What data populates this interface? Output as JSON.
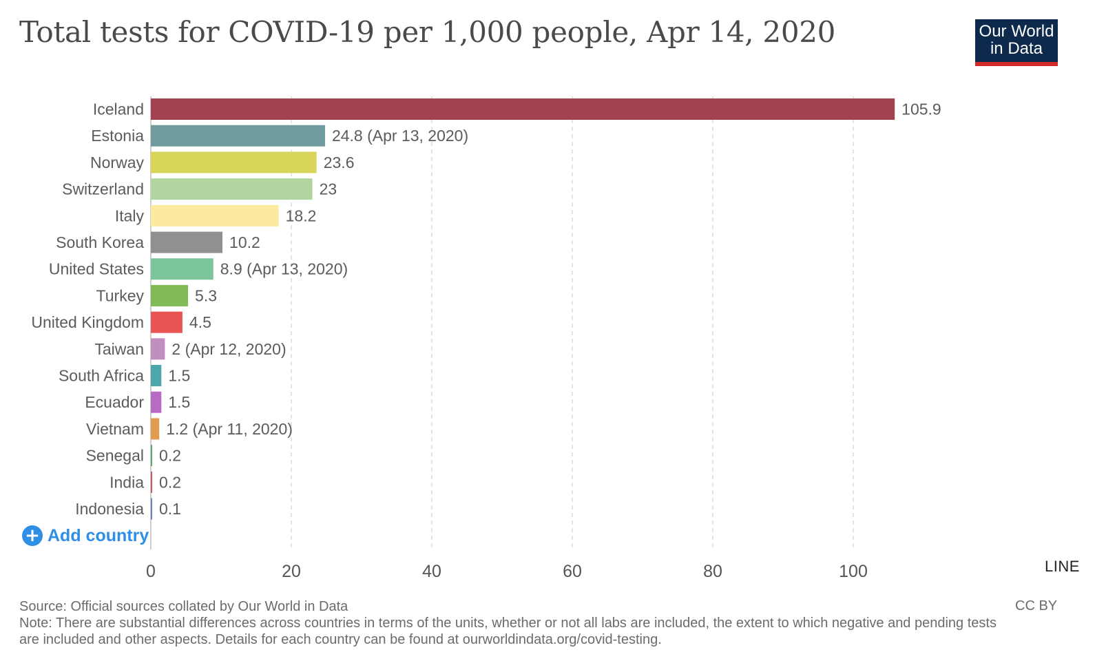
{
  "header": {
    "title": "Total tests for COVID-19 per 1,000 people, Apr 14, 2020",
    "logo_line1": "Our World",
    "logo_line2": "in Data"
  },
  "controls": {
    "add_country_label": "Add country",
    "line_tab_label": "LINE"
  },
  "footer": {
    "source": "Source: Official sources collated by Our World in Data",
    "note": "Note: There are substantial differences across countries in terms of the units, whether or not all labs are included, the extent to which negative and pending tests are included and other aspects. Details for each country can be found at ourworldindata.org/covid-testing.",
    "license": "CC BY"
  },
  "chart_data": {
    "type": "bar",
    "orientation": "horizontal",
    "title": "Total tests for COVID-19 per 1,000 people, Apr 14, 2020",
    "xlim": [
      0,
      120
    ],
    "xticks": [
      0,
      20,
      40,
      60,
      80,
      100
    ],
    "grid": true,
    "categories": [
      "Iceland",
      "Estonia",
      "Norway",
      "Switzerland",
      "Italy",
      "South Korea",
      "United States",
      "Turkey",
      "United Kingdom",
      "Taiwan",
      "South Africa",
      "Ecuador",
      "Vietnam",
      "Senegal",
      "India",
      "Indonesia"
    ],
    "values": [
      105.9,
      24.8,
      23.6,
      23,
      18.2,
      10.2,
      8.9,
      5.3,
      4.5,
      2,
      1.5,
      1.5,
      1.2,
      0.2,
      0.2,
      0.1
    ],
    "value_labels": [
      "105.9",
      "24.8 (Apr 13, 2020)",
      "23.6",
      "23",
      "18.2",
      "10.2",
      "8.9 (Apr 13, 2020)",
      "5.3",
      "4.5",
      "2 (Apr 12, 2020)",
      "1.5",
      "1.5",
      "1.2 (Apr 11, 2020)",
      "0.2",
      "0.2",
      "0.1"
    ],
    "colors": [
      "#a2414f",
      "#6f9b9f",
      "#d8d65a",
      "#b1d59f",
      "#fcea9f",
      "#909090",
      "#7cc49a",
      "#81bb55",
      "#e85353",
      "#c28dbf",
      "#4da6aa",
      "#b86bc4",
      "#e29c4e",
      "#5aab6b",
      "#cc5a5a",
      "#6a86c2"
    ]
  }
}
